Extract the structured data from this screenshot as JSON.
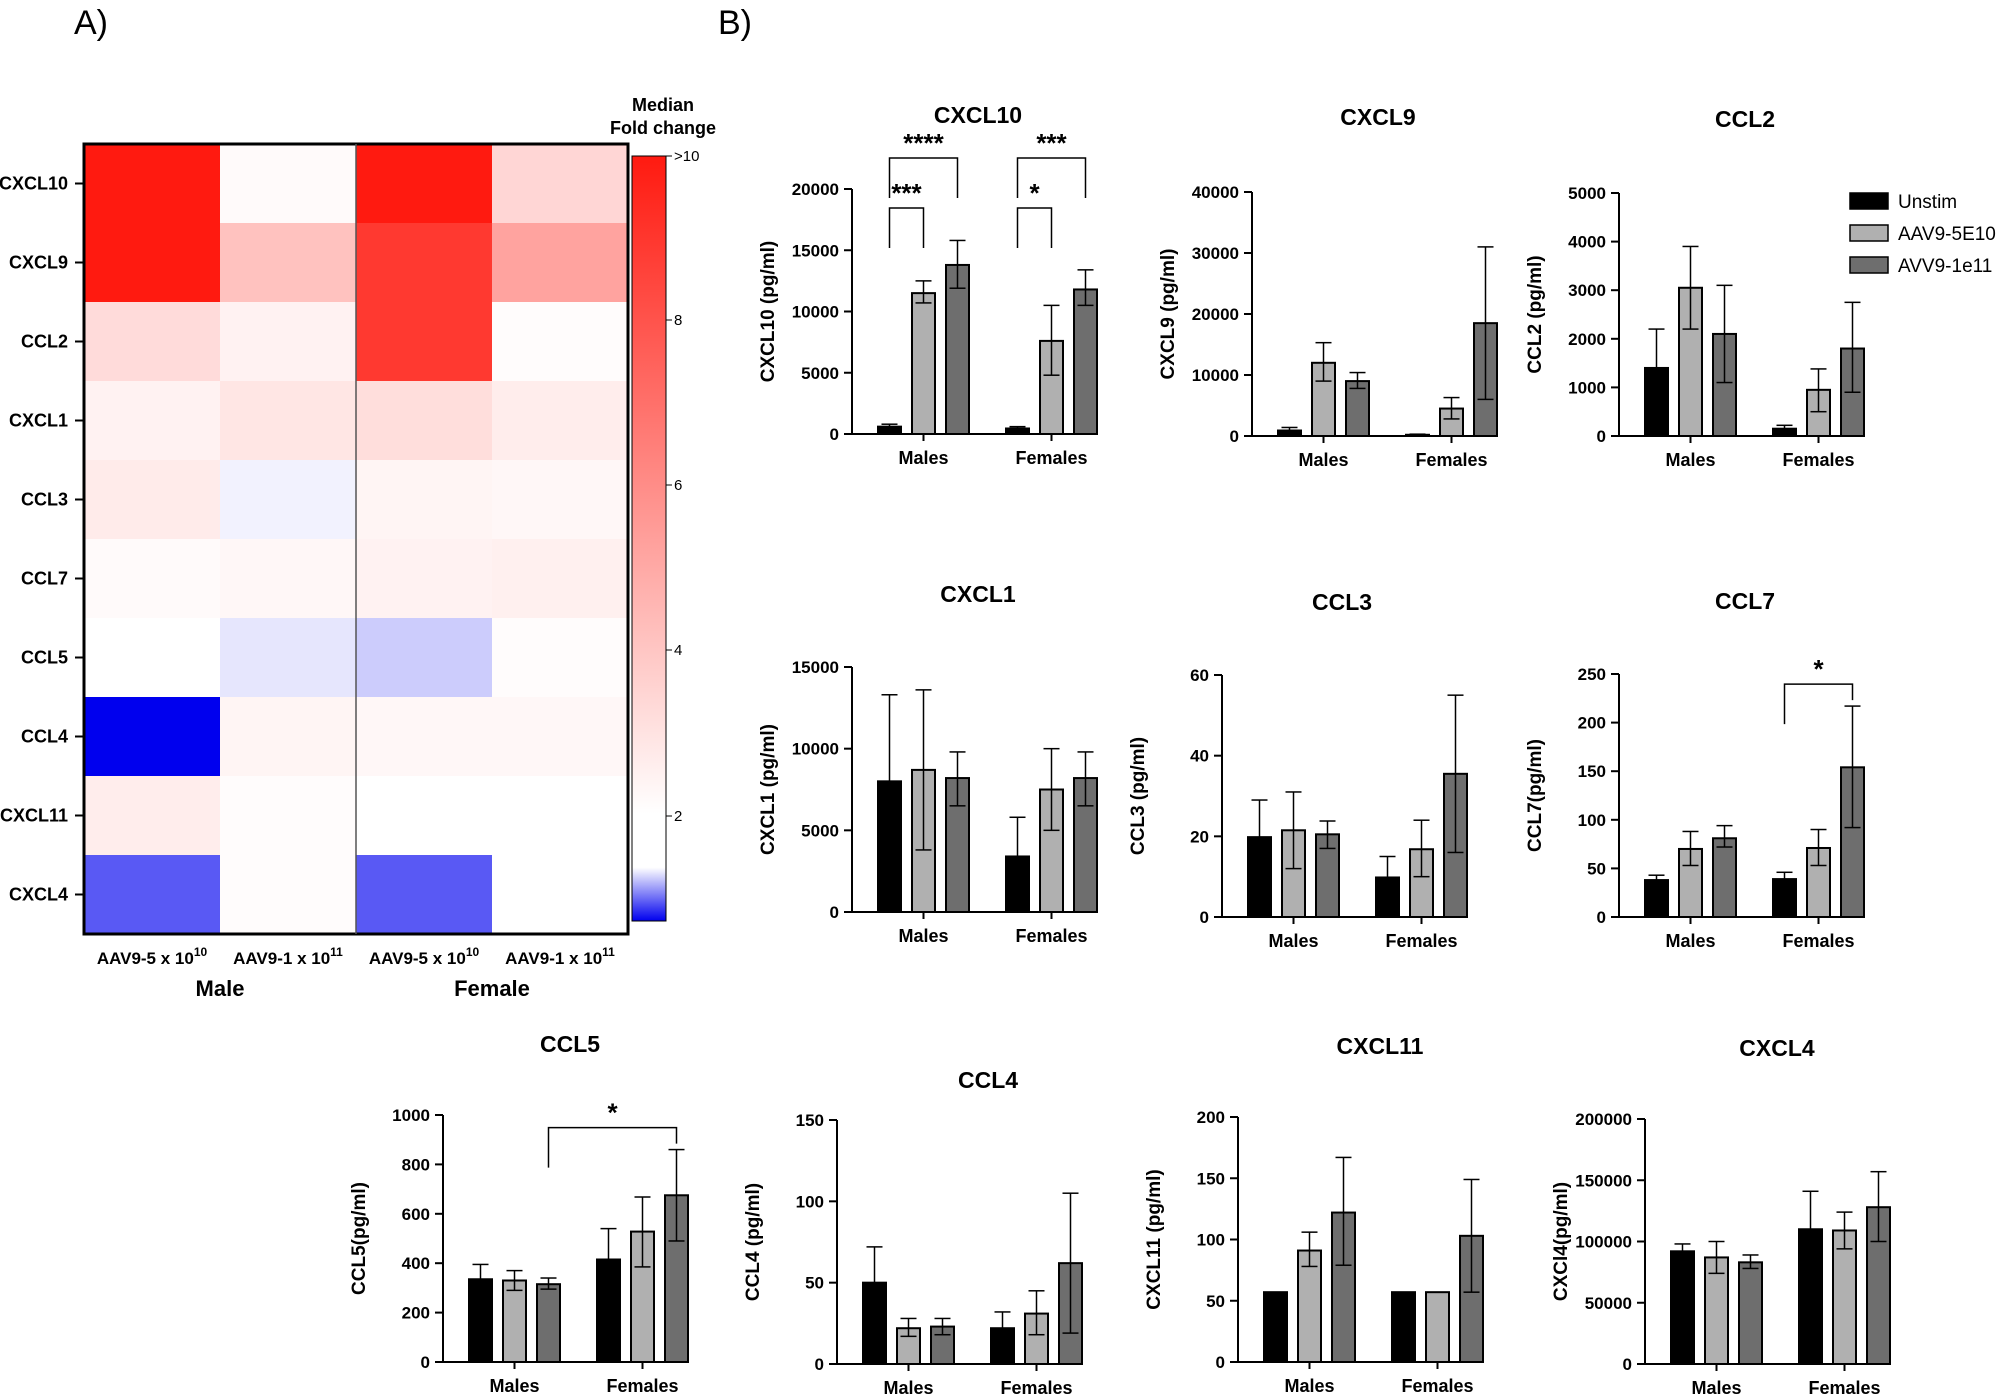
{
  "panels": {
    "a": "A)",
    "b": "B)"
  },
  "heatmap": {
    "rows": [
      "CXCL10",
      "CXCL9",
      "CCL2",
      "CXCL1",
      "CCL3",
      "CCL7",
      "CCL5",
      "CCL4",
      "CXCL11",
      "CXCL4"
    ],
    "columns": [
      {
        "base": "AAV9-5 x 10",
        "exp": "10"
      },
      {
        "base": "AAV9-1 x 10",
        "exp": "11"
      },
      {
        "base": "AAV9-5 x 10",
        "exp": "10"
      },
      {
        "base": "AAV9-1 x 10",
        "exp": "11"
      }
    ],
    "groups": [
      "Male",
      "Female"
    ],
    "values": [
      [
        10,
        1.2,
        10,
        2.6
      ],
      [
        10,
        3.4,
        8.8,
        4.6
      ],
      [
        2.4,
        1.5,
        8.8,
        1.1
      ],
      [
        1.5,
        2.0,
        2.3,
        1.7
      ],
      [
        1.8,
        0.95,
        1.4,
        1.3
      ],
      [
        1.2,
        1.3,
        1.5,
        1.6
      ],
      [
        1.0,
        0.9,
        0.8,
        1.1
      ],
      [
        0.0,
        1.4,
        1.3,
        1.3
      ],
      [
        1.7,
        1.1,
        1.0,
        1.0
      ],
      [
        0.35,
        1.1,
        0.35,
        1.0
      ]
    ],
    "colorbar": {
      "title_line1": "Median",
      "title_line2": "Fold change",
      "ticks": [
        ">10",
        "8",
        "6",
        "4",
        "2"
      ],
      "min_color": "#0000ee",
      "mid_color": "#ffffff",
      "max_color": "#ff1a10"
    }
  },
  "legend": [
    "Unstim",
    "AAV9-5E10",
    "AVV9-1e11"
  ],
  "bar_colors": [
    "#000000",
    "#b0b0b0",
    "#6e6e6e"
  ],
  "chart_data": [
    {
      "type": "bar",
      "title": "CXCL10",
      "ylabel": "CXCL10 (pg/ml)",
      "categories": [
        "Males",
        "Females"
      ],
      "ylim": [
        0,
        20000
      ],
      "yticks": [
        0,
        5000,
        10000,
        15000,
        20000
      ],
      "ytick_labels": [
        "0",
        "5000",
        "10000",
        "15000",
        "20000"
      ],
      "series": [
        {
          "name": "Unstim",
          "values": [
            600,
            450
          ],
          "err": [
            [
              400,
              800
            ],
            [
              300,
              600
            ]
          ]
        },
        {
          "name": "AAV9-5E10",
          "values": [
            11500,
            7600
          ],
          "err": [
            [
              10700,
              12500
            ],
            [
              4800,
              10500
            ]
          ]
        },
        {
          "name": "AVV9-1e11",
          "values": [
            13800,
            11800
          ],
          "err": [
            [
              11900,
              15800
            ],
            [
              10500,
              13400
            ]
          ]
        }
      ],
      "annotations": [
        {
          "label": "****",
          "groups": [
            0,
            0
          ],
          "from": 0,
          "to": 2,
          "level": 2
        },
        {
          "label": "***",
          "groups": [
            0,
            0
          ],
          "from": 0,
          "to": 1,
          "level": 1
        },
        {
          "label": "***",
          "groups": [
            1,
            1
          ],
          "from": 0,
          "to": 2,
          "level": 2
        },
        {
          "label": "*",
          "groups": [
            1,
            1
          ],
          "from": 0,
          "to": 1,
          "level": 1
        }
      ]
    },
    {
      "type": "bar",
      "title": "CXCL9",
      "ylabel": "CXCL9 (pg/ml)",
      "categories": [
        "Males",
        "Females"
      ],
      "ylim": [
        0,
        40000
      ],
      "yticks": [
        0,
        10000,
        20000,
        30000,
        40000
      ],
      "ytick_labels": [
        "0",
        "10000",
        "20000",
        "30000",
        "40000"
      ],
      "series": [
        {
          "name": "Unstim",
          "values": [
            900,
            200
          ],
          "err": [
            [
              400,
              1400
            ],
            [
              100,
              300
            ]
          ]
        },
        {
          "name": "AAV9-5E10",
          "values": [
            12000,
            4500
          ],
          "err": [
            [
              9000,
              15300
            ],
            [
              2800,
              6300
            ]
          ]
        },
        {
          "name": "AVV9-1e11",
          "values": [
            9000,
            18500
          ],
          "err": [
            [
              7800,
              10400
            ],
            [
              6000,
              31000
            ]
          ]
        }
      ]
    },
    {
      "type": "bar",
      "title": "CCL2",
      "ylabel": "CCL2 (pg/ml)",
      "categories": [
        "Males",
        "Females"
      ],
      "ylim": [
        0,
        5000
      ],
      "yticks": [
        0,
        1000,
        2000,
        3000,
        4000,
        5000
      ],
      "ytick_labels": [
        "0",
        "1000",
        "2000",
        "3000",
        "4000",
        "5000"
      ],
      "series": [
        {
          "name": "Unstim",
          "values": [
            1400,
            150
          ],
          "err": [
            [
              600,
              2200
            ],
            [
              50,
              220
            ]
          ]
        },
        {
          "name": "AAV9-5E10",
          "values": [
            3050,
            950
          ],
          "err": [
            [
              2200,
              3900
            ],
            [
              500,
              1380
            ]
          ]
        },
        {
          "name": "AVV9-1e11",
          "values": [
            2100,
            1800
          ],
          "err": [
            [
              1100,
              3100
            ],
            [
              900,
              2750
            ]
          ]
        }
      ]
    },
    {
      "type": "bar",
      "title": "CXCL1",
      "ylabel": "CXCL1 (pg/ml)",
      "categories": [
        "Males",
        "Females"
      ],
      "ylim": [
        0,
        15000
      ],
      "yticks": [
        0,
        5000,
        10000,
        15000
      ],
      "ytick_labels": [
        "0",
        "5000",
        "10000",
        "15000"
      ],
      "series": [
        {
          "name": "Unstim",
          "values": [
            8000,
            3400
          ],
          "err": [
            [
              5000,
              13300
            ],
            [
              1000,
              5800
            ]
          ]
        },
        {
          "name": "AAV9-5E10",
          "values": [
            8700,
            7500
          ],
          "err": [
            [
              3800,
              13600
            ],
            [
              5000,
              10000
            ]
          ]
        },
        {
          "name": "AVV9-1e11",
          "values": [
            8200,
            8200
          ],
          "err": [
            [
              6500,
              9800
            ],
            [
              6500,
              9800
            ]
          ]
        }
      ]
    },
    {
      "type": "bar",
      "title": "CCL3",
      "ylabel": "CCL3 (pg/ml)",
      "categories": [
        "Males",
        "Females"
      ],
      "ylim": [
        0,
        60
      ],
      "yticks": [
        0,
        20,
        40,
        60
      ],
      "ytick_labels": [
        "0",
        "20",
        "40",
        "60"
      ],
      "series": [
        {
          "name": "Unstim",
          "values": [
            19.8,
            9.8
          ],
          "err": [
            [
              12,
              29
            ],
            [
              5,
              15
            ]
          ]
        },
        {
          "name": "AAV9-5E10",
          "values": [
            21.5,
            16.8
          ],
          "err": [
            [
              12,
              31
            ],
            [
              10,
              24
            ]
          ]
        },
        {
          "name": "AVV9-1e11",
          "values": [
            20.5,
            35.5
          ],
          "err": [
            [
              17,
              23.8
            ],
            [
              16,
              55
            ]
          ]
        }
      ]
    },
    {
      "type": "bar",
      "title": "CCL7",
      "ylabel": "CCL7(pg/ml)",
      "categories": [
        "Males",
        "Females"
      ],
      "ylim": [
        0,
        250
      ],
      "yticks": [
        0,
        50,
        100,
        150,
        200,
        250
      ],
      "ytick_labels": [
        "0",
        "50",
        "100",
        "150",
        "200",
        "250"
      ],
      "series": [
        {
          "name": "Unstim",
          "values": [
            38,
            39
          ],
          "err": [
            [
              32,
              43
            ],
            [
              32,
              46
            ]
          ]
        },
        {
          "name": "AAV9-5E10",
          "values": [
            70,
            71
          ],
          "err": [
            [
              53,
              88
            ],
            [
              53,
              90
            ]
          ]
        },
        {
          "name": "AVV9-1e11",
          "values": [
            81,
            154
          ],
          "err": [
            [
              72,
              94
            ],
            [
              92,
              217
            ]
          ]
        }
      ],
      "annotations": [
        {
          "label": "*",
          "groups": [
            1,
            1
          ],
          "from": 0,
          "to": 2,
          "level": 2
        }
      ]
    },
    {
      "type": "bar",
      "title": "CCL5",
      "ylabel": "CCL5(pg/ml)",
      "categories": [
        "Males",
        "Females"
      ],
      "ylim": [
        0,
        1000
      ],
      "yticks": [
        0,
        200,
        400,
        600,
        800,
        1000
      ],
      "ytick_labels": [
        "0",
        "200",
        "400",
        "600",
        "800",
        "1000"
      ],
      "series": [
        {
          "name": "Unstim",
          "values": [
            335,
            415
          ],
          "err": [
            [
              270,
              395
            ],
            [
              290,
              540
            ]
          ]
        },
        {
          "name": "AAV9-5E10",
          "values": [
            330,
            528
          ],
          "err": [
            [
              290,
              370
            ],
            [
              385,
              668
            ]
          ]
        },
        {
          "name": "AVV9-1e11",
          "values": [
            315,
            675
          ],
          "err": [
            [
              295,
              340
            ],
            [
              490,
              860
            ]
          ]
        }
      ],
      "annotations": [
        {
          "label": "*",
          "groups": [
            0,
            1
          ],
          "from": 2,
          "to": 2,
          "level": 2
        }
      ]
    },
    {
      "type": "bar",
      "title": "CCL4",
      "ylabel": "CCL4 (pg/ml)",
      "categories": [
        "Males",
        "Females"
      ],
      "ylim": [
        0,
        150
      ],
      "yticks": [
        0,
        50,
        100,
        150
      ],
      "ytick_labels": [
        "0",
        "50",
        "100",
        "150"
      ],
      "series": [
        {
          "name": "Unstim",
          "values": [
            50,
            22
          ],
          "err": [
            [
              30,
              72
            ],
            [
              12,
              32
            ]
          ]
        },
        {
          "name": "AAV9-5E10",
          "values": [
            22,
            31
          ],
          "err": [
            [
              17,
              28
            ],
            [
              18,
              45
            ]
          ]
        },
        {
          "name": "AVV9-1e11",
          "values": [
            23,
            62
          ],
          "err": [
            [
              18,
              28
            ],
            [
              19,
              105
            ]
          ]
        }
      ]
    },
    {
      "type": "bar",
      "title": "CXCL11",
      "ylabel": "CXCL11 (pg/ml)",
      "categories": [
        "Males",
        "Females"
      ],
      "ylim": [
        0,
        200
      ],
      "yticks": [
        0,
        50,
        100,
        150,
        200
      ],
      "ytick_labels": [
        "0",
        "50",
        "100",
        "150",
        "200"
      ],
      "series": [
        {
          "name": "Unstim",
          "values": [
            57,
            57
          ],
          "err": null
        },
        {
          "name": "AAV9-5E10",
          "values": [
            91,
            57
          ],
          "err": [
            [
              78,
              106
            ],
            null
          ]
        },
        {
          "name": "AVV9-1e11",
          "values": [
            122,
            103
          ],
          "err": [
            [
              79,
              167
            ],
            [
              57,
              149
            ]
          ]
        }
      ]
    },
    {
      "type": "bar",
      "title": "CXCL4",
      "ylabel": "CXCl4(pg/ml)",
      "categories": [
        "Males",
        "Females"
      ],
      "ylim": [
        0,
        200000
      ],
      "yticks": [
        0,
        50000,
        100000,
        150000,
        200000
      ],
      "ytick_labels": [
        "0",
        "50000",
        "100000",
        "150000",
        "200000"
      ],
      "series": [
        {
          "name": "Unstim",
          "values": [
            92000,
            110000
          ],
          "err": [
            [
              86000,
              98000
            ],
            [
              80000,
              141000
            ]
          ]
        },
        {
          "name": "AAV9-5E10",
          "values": [
            87000,
            109000
          ],
          "err": [
            [
              74000,
              100000
            ],
            [
              94000,
              124000
            ]
          ]
        },
        {
          "name": "AVV9-1e11",
          "values": [
            83000,
            128000
          ],
          "err": [
            [
              78000,
              89000
            ],
            [
              100000,
              157000
            ]
          ]
        }
      ]
    }
  ]
}
